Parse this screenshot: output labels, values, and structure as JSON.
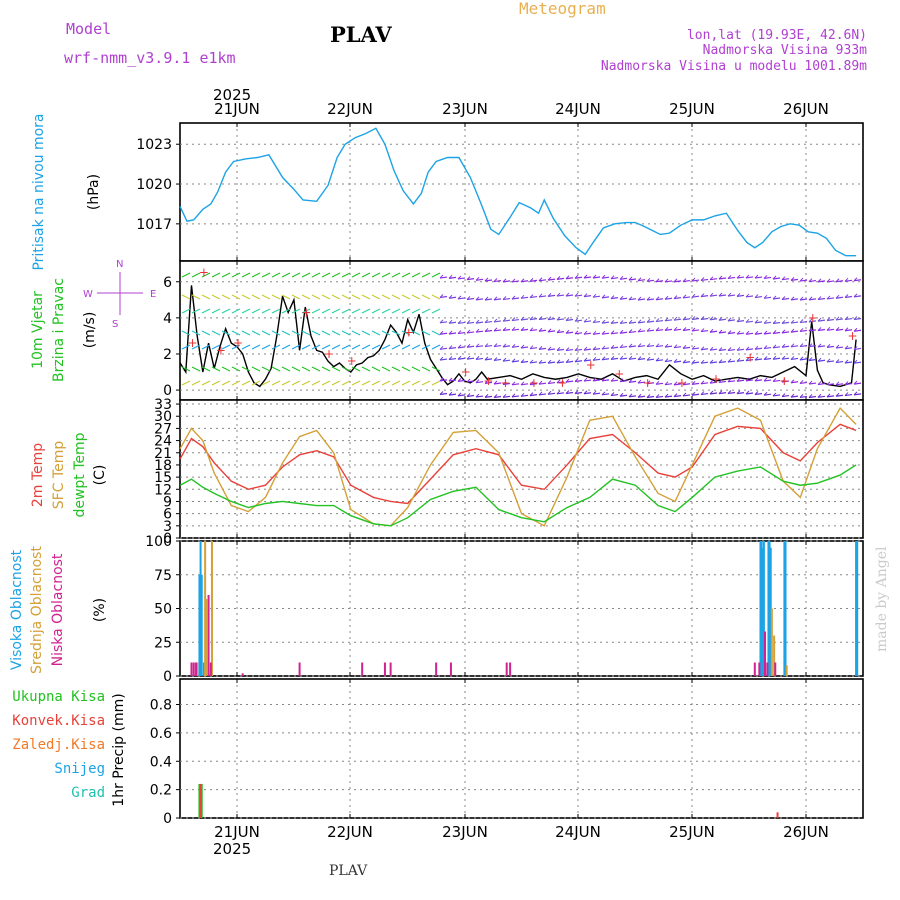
{
  "header": {
    "model_label": "Model",
    "model_name": "wrf-nmm_v3.9.1  e1km",
    "station": "PLAV",
    "title": "Meteogram",
    "lonlat": "lon,lat (19.93E, 42.6N)",
    "altitude": "Nadmorska Visina 933m",
    "model_altitude": "Nadmorska Visina u modelu 1001.89m",
    "footer_station": "PLAV",
    "credit": "made by Angel",
    "year": "2025"
  },
  "colors": {
    "pressure": "#1ca3e6",
    "wind_speed": "#000000",
    "gust_marker": "#e83030",
    "t2m": "#e8413a",
    "sfc": "#d4a038",
    "dewpoint": "#22c222",
    "cloud_high": "#1ca3e6",
    "cloud_mid": "#d4a038",
    "cloud_low": "#d02290",
    "precip_total": "#22c222",
    "precip_conv": "#e8413a",
    "precip_frozen": "#f07a28",
    "header_purple": "#b040d0",
    "header_orange": "#e8b050"
  },
  "chart_data": [
    {
      "type": "line",
      "name": "pressure",
      "x_ticks": [
        "21JUN",
        "22JUN",
        "23JUN",
        "24JUN",
        "25JUN",
        "26JUN"
      ],
      "ylabel": [
        "Pritisak na nivou mora",
        "(hPa)"
      ],
      "yticks": [
        1017,
        1020,
        1023
      ],
      "ylim": [
        1014.2,
        1024.6
      ],
      "grid": true,
      "series": [
        {
          "color_key": "pressure",
          "x": [
            0,
            0.06,
            0.12,
            0.2,
            0.27,
            0.33,
            0.4,
            0.47,
            0.58,
            0.68,
            0.78,
            0.9,
            1.0,
            1.08,
            1.2,
            1.3,
            1.38,
            1.45,
            1.54,
            1.63,
            1.72,
            1.8,
            1.88,
            1.96,
            2.05,
            2.12,
            2.18,
            2.25,
            2.35,
            2.45,
            2.55,
            2.65,
            2.73,
            2.8,
            2.9,
            2.98,
            3.08,
            3.15,
            3.2,
            3.28,
            3.38,
            3.48,
            3.56,
            3.63,
            3.72,
            3.82,
            3.92,
            4.0,
            4.08,
            4.15,
            4.22,
            4.3,
            4.4,
            4.5,
            4.6,
            4.7,
            4.8,
            4.9,
            4.98,
            5.05,
            5.12,
            5.2,
            5.28,
            5.36,
            5.44,
            5.52,
            5.6,
            5.68,
            5.76,
            5.85,
            5.94
          ],
          "values": [
            1018.3,
            1017.2,
            1017.3,
            1018.1,
            1018.5,
            1019.4,
            1020.9,
            1021.7,
            1021.9,
            1022.0,
            1022.2,
            1020.5,
            1019.6,
            1018.8,
            1018.7,
            1019.9,
            1022.0,
            1023.0,
            1023.5,
            1023.8,
            1024.2,
            1023.0,
            1021.0,
            1019.5,
            1018.5,
            1019.3,
            1020.9,
            1021.7,
            1022.0,
            1022.0,
            1020.5,
            1018.4,
            1016.6,
            1016.2,
            1017.5,
            1018.6,
            1018.2,
            1017.8,
            1018.8,
            1017.4,
            1016.1,
            1015.2,
            1014.7,
            1015.6,
            1016.7,
            1017.0,
            1017.1,
            1017.1,
            1016.8,
            1016.5,
            1016.2,
            1016.3,
            1016.9,
            1017.3,
            1017.3,
            1017.6,
            1017.8,
            1016.5,
            1015.6,
            1015.2,
            1015.6,
            1016.4,
            1016.8,
            1017.0,
            1016.9,
            1016.4,
            1016.3,
            1015.9,
            1015.0,
            1014.6,
            1014.6
          ]
        }
      ]
    },
    {
      "type": "line",
      "name": "wind",
      "ylabel": [
        "10m Vjetar",
        "Brzina i Pravac",
        "(m/s)"
      ],
      "compass": {
        "north": "N",
        "south": "S",
        "west": "W",
        "east": "E"
      },
      "yticks": [
        0,
        2,
        4,
        6
      ],
      "ylim": [
        -0.55,
        7.15
      ],
      "grid": true,
      "series": [
        {
          "name": "speed",
          "color_key": "wind_speed",
          "x": [
            0,
            0.05,
            0.1,
            0.15,
            0.2,
            0.25,
            0.3,
            0.35,
            0.4,
            0.45,
            0.5,
            0.55,
            0.6,
            0.65,
            0.7,
            0.75,
            0.8,
            0.85,
            0.9,
            0.95,
            1.0,
            1.05,
            1.1,
            1.15,
            1.2,
            1.25,
            1.3,
            1.35,
            1.4,
            1.45,
            1.5,
            1.55,
            1.6,
            1.65,
            1.7,
            1.75,
            1.8,
            1.85,
            1.9,
            1.95,
            2.0,
            2.05,
            2.1,
            2.15,
            2.2,
            2.25,
            2.3,
            2.35,
            2.4,
            2.45,
            2.5,
            2.55,
            2.6,
            2.65,
            2.7,
            2.8,
            2.9,
            3.0,
            3.1,
            3.2,
            3.3,
            3.4,
            3.5,
            3.6,
            3.7,
            3.8,
            3.9,
            4.0,
            4.1,
            4.2,
            4.3,
            4.4,
            4.5,
            4.6,
            4.7,
            4.8,
            4.9,
            5.0,
            5.1,
            5.2,
            5.3,
            5.4,
            5.5,
            5.55,
            5.6,
            5.65,
            5.7,
            5.8,
            5.9,
            5.94
          ],
          "values": [
            1.5,
            1.0,
            5.8,
            3.0,
            1.0,
            2.6,
            1.2,
            2.4,
            3.4,
            2.6,
            2.4,
            2.0,
            1.0,
            0.4,
            0.2,
            0.6,
            1.2,
            3.0,
            5.2,
            4.3,
            5.0,
            2.2,
            4.6,
            3.0,
            2.2,
            2.1,
            1.6,
            1.3,
            1.5,
            1.2,
            1.0,
            1.4,
            1.5,
            1.8,
            1.9,
            2.2,
            2.8,
            3.6,
            3.2,
            2.6,
            3.9,
            3.2,
            4.2,
            2.6,
            1.7,
            1.2,
            0.7,
            0.3,
            0.5,
            0.9,
            0.5,
            0.4,
            0.6,
            1.0,
            0.6,
            0.7,
            0.8,
            0.6,
            0.9,
            0.7,
            0.6,
            0.7,
            0.9,
            0.7,
            0.6,
            0.9,
            0.5,
            0.7,
            0.8,
            0.6,
            1.4,
            0.9,
            0.6,
            0.8,
            0.5,
            0.6,
            0.7,
            0.6,
            0.8,
            0.7,
            1.0,
            1.3,
            0.8,
            3.8,
            1.1,
            0.4,
            0.3,
            0.2,
            0.4,
            2.8
          ]
        }
      ]
    },
    {
      "type": "line",
      "name": "temperature",
      "ylabel": [
        "2m Temp",
        "SFC Temp",
        "dewpt Temp",
        "(C)"
      ],
      "yticks": [
        0,
        3,
        6,
        9,
        12,
        15,
        18,
        21,
        24,
        27,
        30,
        33
      ],
      "ylim": [
        0,
        34
      ],
      "grid": true,
      "series": [
        {
          "name": "2m Temp",
          "color_key": "t2m",
          "x": [
            0,
            0.1,
            0.2,
            0.3,
            0.45,
            0.6,
            0.75,
            0.9,
            1.05,
            1.2,
            1.35,
            1.5,
            1.7,
            1.85,
            2.0,
            2.2,
            2.4,
            2.6,
            2.8,
            3.0,
            3.2,
            3.4,
            3.6,
            3.8,
            4.0,
            4.2,
            4.35,
            4.5,
            4.7,
            4.9,
            5.1,
            5.3,
            5.45,
            5.6,
            5.8,
            5.94
          ],
          "values": [
            19.5,
            24.5,
            22.5,
            18.5,
            14.0,
            12.0,
            13.0,
            17.5,
            20.5,
            21.5,
            20.0,
            13.0,
            10.0,
            9.0,
            8.5,
            14.5,
            20.5,
            22.0,
            20.5,
            13.0,
            12.0,
            18.0,
            24.5,
            25.5,
            21.0,
            16.0,
            15.0,
            17.5,
            25.5,
            27.5,
            27.0,
            21.0,
            19.0,
            23.5,
            28.0,
            26.5
          ]
        },
        {
          "name": "SFC Temp",
          "color_key": "sfc",
          "x": [
            0,
            0.1,
            0.2,
            0.3,
            0.45,
            0.6,
            0.75,
            0.9,
            1.05,
            1.2,
            1.35,
            1.5,
            1.7,
            1.85,
            2.0,
            2.2,
            2.4,
            2.6,
            2.8,
            3.0,
            3.2,
            3.4,
            3.6,
            3.8,
            4.0,
            4.2,
            4.35,
            4.5,
            4.7,
            4.9,
            5.1,
            5.3,
            5.45,
            5.6,
            5.8,
            5.94
          ],
          "values": [
            22.0,
            27.0,
            24.0,
            16.0,
            8.0,
            6.5,
            10.0,
            18.5,
            25.0,
            26.5,
            21.0,
            7.0,
            3.5,
            3.0,
            7.5,
            18.0,
            26.0,
            26.5,
            21.0,
            6.0,
            3.0,
            15.0,
            29.0,
            30.0,
            20.0,
            11.0,
            9.0,
            18.0,
            30.0,
            32.0,
            29.0,
            14.0,
            10.0,
            22.0,
            32.0,
            28.0
          ]
        },
        {
          "name": "dewpt Temp",
          "color_key": "dewpoint",
          "x": [
            0,
            0.1,
            0.2,
            0.3,
            0.45,
            0.6,
            0.75,
            0.9,
            1.05,
            1.2,
            1.35,
            1.5,
            1.7,
            1.85,
            2.0,
            2.2,
            2.4,
            2.6,
            2.8,
            3.0,
            3.2,
            3.4,
            3.6,
            3.8,
            4.0,
            4.2,
            4.35,
            4.5,
            4.7,
            4.9,
            5.1,
            5.3,
            5.45,
            5.6,
            5.8,
            5.94
          ],
          "values": [
            13.0,
            14.5,
            12.5,
            11.0,
            9.0,
            7.5,
            8.5,
            9.0,
            8.5,
            8.0,
            8.0,
            5.5,
            3.5,
            3.0,
            5.0,
            9.5,
            11.5,
            12.5,
            7.0,
            5.0,
            4.0,
            7.5,
            10.0,
            14.5,
            13.0,
            8.0,
            6.5,
            10.0,
            15.0,
            16.5,
            17.5,
            14.0,
            13.0,
            13.5,
            15.5,
            18.0
          ]
        }
      ]
    },
    {
      "type": "bar",
      "name": "clouds",
      "ylabel": [
        "Visoka Oblacnost",
        "Srednja Oblacnost",
        "Niska Oblacnost",
        "(%)"
      ],
      "yticks": [
        0,
        25,
        50,
        75,
        100
      ],
      "ylim": [
        0,
        100
      ],
      "grid": true,
      "series": [
        {
          "name": "Visoka Oblacnost",
          "color_key": "cloud_high",
          "x": [
            0.17,
            0.18,
            0.19,
            0.21,
            5.1,
            5.11,
            5.12,
            5.13,
            5.17,
            5.18,
            5.19,
            5.31,
            5.32,
            5.94,
            5.95
          ],
          "values": [
            75,
            100,
            75,
            10,
            100,
            100,
            95,
            100,
            100,
            100,
            95,
            100,
            100,
            100,
            100
          ]
        },
        {
          "name": "Srednja Oblacnost",
          "color_key": "cloud_mid",
          "x": [
            0.15,
            0.22,
            0.23,
            0.28,
            5.2,
            5.22,
            5.33
          ],
          "values": [
            10,
            100,
            57,
            100,
            50,
            30,
            8
          ]
        },
        {
          "name": "Niska Oblacnost",
          "color_key": "cloud_low",
          "x": [
            0.1,
            0.12,
            0.14,
            0.25,
            0.27,
            0.55,
            1.05,
            1.6,
            1.8,
            1.85,
            2.25,
            2.38,
            2.87,
            2.9,
            5.05,
            5.09,
            5.14,
            5.16,
            5.23
          ],
          "values": [
            10,
            10,
            10,
            60,
            10,
            2,
            10,
            10,
            10,
            10,
            10,
            10,
            10,
            10,
            10,
            10,
            33,
            10,
            10
          ]
        }
      ]
    },
    {
      "type": "bar",
      "name": "precipitation",
      "ylabel": [
        "1hr Precip (mm)"
      ],
      "legend": [
        {
          "label": "Ukupna Kisa",
          "color_key": "precip_total"
        },
        {
          "label": "Konvek.Kisa",
          "color_key": "precip_conv"
        },
        {
          "label": "Zaledj.Kisa",
          "color_key": "precip_frozen"
        },
        {
          "label": "Snijeg",
          "color_key": "cloud_high"
        },
        {
          "label": "Grad",
          "color_key": "precip_hail"
        }
      ],
      "yticks": [
        0,
        0.2,
        0.4,
        0.6,
        0.8
      ],
      "ytick_labels": [
        "0",
        "0.2",
        "0.4",
        "0.6",
        "0.8"
      ],
      "ylim": [
        0,
        0.98
      ],
      "grid": true,
      "series": [
        {
          "name": "Ukupna Kisa",
          "color_key": "precip_total",
          "x": [
            0.17,
            0.19
          ],
          "values": [
            0.24,
            0.24
          ]
        },
        {
          "name": "Konvek.Kisa",
          "color_key": "precip_conv",
          "x": [
            0.18,
            5.25
          ],
          "values": [
            0.24,
            0.04
          ]
        }
      ]
    }
  ]
}
